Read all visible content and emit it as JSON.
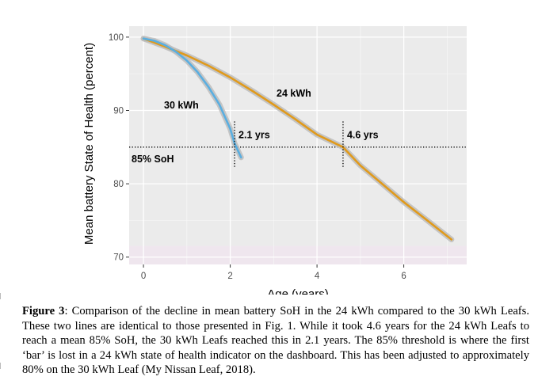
{
  "chart_data": {
    "type": "line",
    "title": "",
    "xlabel": "Age (years)",
    "ylabel": "Mean battery State of Health (percent)",
    "xlim": [
      -0.33,
      7.45
    ],
    "ylim": [
      69,
      101.5
    ],
    "x_ticks": [
      0,
      2,
      4,
      6
    ],
    "y_ticks": [
      70,
      80,
      90,
      100
    ],
    "grid": true,
    "legend": "none",
    "series": [
      {
        "name": "24 kWh",
        "color": "#e09a1c",
        "x": [
          0,
          0.5,
          1,
          1.5,
          2,
          2.5,
          3,
          3.5,
          4,
          4.6,
          5,
          5.5,
          6,
          6.5,
          7.1
        ],
        "y": [
          99.8,
          98.7,
          97.5,
          96.1,
          94.5,
          92.7,
          90.8,
          88.8,
          86.7,
          85.0,
          82.5,
          80.0,
          77.5,
          75.2,
          72.4
        ]
      },
      {
        "name": "30 kWh",
        "color": "#5aaee0",
        "x": [
          0,
          0.25,
          0.5,
          0.75,
          1.0,
          1.25,
          1.5,
          1.75,
          2.0,
          2.1,
          2.25
        ],
        "y": [
          99.8,
          99.5,
          98.9,
          98.0,
          96.8,
          95.2,
          93.2,
          90.8,
          87.5,
          85.5,
          83.6
        ]
      }
    ],
    "reference_line": {
      "y": 85,
      "label": "85% SoH"
    },
    "annotations": [
      {
        "label": "30 kWh",
        "series": "30 kWh"
      },
      {
        "label": "24 kWh",
        "series": "24 kWh"
      },
      {
        "label": "2.1 yrs",
        "x": 2.1
      },
      {
        "label": "4.6 yrs",
        "x": 4.6
      }
    ]
  },
  "caption": {
    "label": "Figure 3",
    "text": ": Comparison of the decline in mean battery SoH in the 24 kWh compared to the 30 kWh Leafs. These two lines are identical to those presented in Fig. 1. While it took 4.6 years for the 24 kWh Leafs to reach a mean 85% SoH, the 30 kWh Leafs reached this in 2.1 years. The 85% threshold is where the first ‘bar’ is lost in a 24 kWh state of health indicator on the dashboard. This has been adjusted to approximately 80% on the 30 kWh Leaf (My Nissan Leaf, 2018)."
  }
}
